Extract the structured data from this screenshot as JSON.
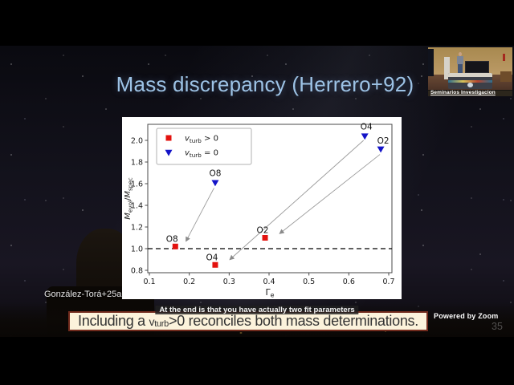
{
  "window": {
    "branding": "Powered by Zoom",
    "page_number": "35"
  },
  "live_caption": "At the end is that you have actually two fit parameters",
  "webcam": {
    "label": "Seminarios Investigacion"
  },
  "slide": {
    "title": "Mass discrepancy (Herrero+92)",
    "title_color": "#9dc3e6",
    "citation": "González-Torá+25a",
    "takeaway_prefix": "Including a ",
    "takeaway_var": "v",
    "takeaway_var_sub": "turb",
    "takeaway_suffix": ">0 reconciles both mass determinations.",
    "takeaway_bg": "#fcf3dc",
    "takeaway_border": "#722b1d"
  },
  "chart_data": {
    "type": "scatter",
    "title": "",
    "xlabel": "Γe",
    "ylabel": "Mevol/Mspec",
    "xlabel_rich": [
      {
        "t": "Γ",
        "i": false
      },
      {
        "t": "e",
        "sub": true
      }
    ],
    "ylabel_rich": [
      {
        "t": "M",
        "i": true
      },
      {
        "t": "evol",
        "sub": true
      },
      {
        "t": "/"
      },
      {
        "t": "M",
        "i": true
      },
      {
        "t": "spec",
        "sub": true
      }
    ],
    "xlim": [
      0.09,
      0.71
    ],
    "ylim": [
      0.78,
      2.15
    ],
    "x_ticks": [
      "0.1",
      "0.2",
      "0.3",
      "0.4",
      "0.5",
      "0.6",
      "0.7"
    ],
    "y_ticks": [
      "0.8",
      "1.0",
      "1.2",
      "1.4",
      "1.6",
      "1.8",
      "2.0"
    ],
    "reference_line_y": 1.0,
    "grid": false,
    "legend_position": "upper left",
    "series": [
      {
        "name": "vturb > 0",
        "name_rich": [
          {
            "t": "v",
            "i": true
          },
          {
            "t": "turb",
            "sub": true
          },
          {
            "t": " > 0"
          }
        ],
        "marker": "square",
        "color": "#e3120e",
        "points": [
          {
            "label": "O8",
            "x": 0.165,
            "y": 1.02,
            "dx": -4,
            "dy": -6
          },
          {
            "label": "O4",
            "x": 0.265,
            "y": 0.85,
            "dx": -4,
            "dy": -6
          },
          {
            "label": "O2",
            "x": 0.39,
            "y": 1.1,
            "dx": -3,
            "dy": -6
          }
        ]
      },
      {
        "name": "vturb = 0",
        "name_rich": [
          {
            "t": "v",
            "i": true
          },
          {
            "t": "turb",
            "sub": true
          },
          {
            "t": " = 0"
          }
        ],
        "marker": "triangle-down",
        "color": "#1414c8",
        "points": [
          {
            "label": "O8",
            "x": 0.265,
            "y": 1.61,
            "dx": 0,
            "dy": -8
          },
          {
            "label": "O4",
            "x": 0.64,
            "y": 2.04,
            "dx": 2,
            "dy": -8
          },
          {
            "label": "O2",
            "x": 0.68,
            "y": 1.92,
            "dx": 3,
            "dy": -7
          }
        ]
      }
    ],
    "arrows": [
      {
        "x1": 0.262,
        "y1": 1.56,
        "x2": 0.192,
        "y2": 1.07
      },
      {
        "x1": 0.637,
        "y1": 2.0,
        "x2": 0.302,
        "y2": 0.9
      },
      {
        "x1": 0.678,
        "y1": 1.87,
        "x2": 0.427,
        "y2": 1.14
      }
    ]
  }
}
